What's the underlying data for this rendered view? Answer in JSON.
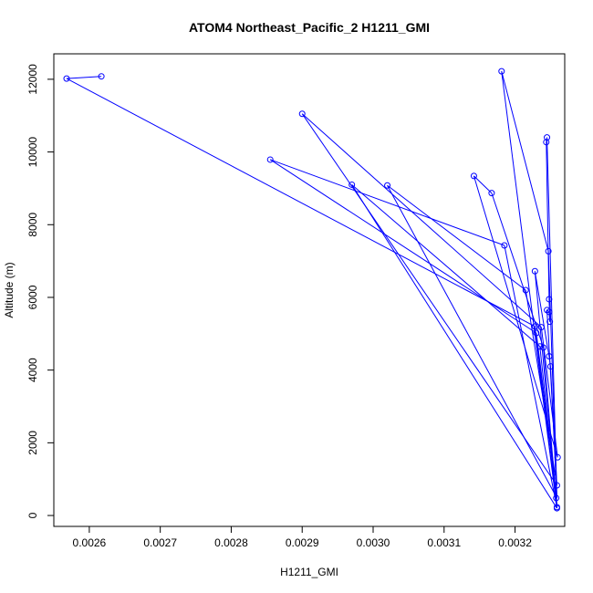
{
  "chart_data": {
    "type": "line",
    "title": "ATOM4 Northeast_Pacific_2 H1211_GMI",
    "xlabel": "H1211_GMI",
    "ylabel": "Altitude (m)",
    "xlim": [
      0.00255,
      0.00327
    ],
    "ylim": [
      -300,
      12700
    ],
    "x_ticks": [
      0.0026,
      0.0027,
      0.0028,
      0.0029,
      0.003,
      0.0031,
      0.0032
    ],
    "x_tick_labels": [
      "0.0026",
      "0.0027",
      "0.0028",
      "0.0029",
      "0.0030",
      "0.0031",
      "0.0032"
    ],
    "y_ticks": [
      0,
      2000,
      4000,
      6000,
      8000,
      10000,
      12000
    ],
    "y_tick_labels": [
      "0",
      "2000",
      "4000",
      "6000",
      "8000",
      "10000",
      "12000"
    ],
    "series": [
      {
        "color": "#0000ff",
        "marker": "open-circle",
        "points": [
          {
            "x": 0.003259,
            "y": 200
          },
          {
            "x": 0.003259,
            "y": 230
          },
          {
            "x": 0.003258,
            "y": 480
          },
          {
            "x": 0.003259,
            "y": 830
          },
          {
            "x": 0.00326,
            "y": 1600
          },
          {
            "x": 0.00325,
            "y": 4100
          },
          {
            "x": 0.003248,
            "y": 4380
          },
          {
            "x": 0.00324,
            "y": 4620
          },
          {
            "x": 0.003235,
            "y": 4650
          },
          {
            "x": 0.00323,
            "y": 5020
          },
          {
            "x": 0.003228,
            "y": 5200
          },
          {
            "x": 0.003237,
            "y": 5180
          },
          {
            "x": 0.003245,
            "y": 5650
          },
          {
            "x": 0.003249,
            "y": 5330
          },
          {
            "x": 0.003248,
            "y": 5600
          },
          {
            "x": 0.003248,
            "y": 5950
          },
          {
            "x": 0.003215,
            "y": 6200
          },
          {
            "x": 0.003228,
            "y": 6720
          },
          {
            "x": 0.003247,
            "y": 7270
          },
          {
            "x": 0.003185,
            "y": 7430
          },
          {
            "x": 0.003167,
            "y": 8870
          },
          {
            "x": 0.003142,
            "y": 9340
          },
          {
            "x": 0.00302,
            "y": 9080
          },
          {
            "x": 0.00297,
            "y": 9100
          },
          {
            "x": 0.002855,
            "y": 9790
          },
          {
            "x": 0.003244,
            "y": 10270
          },
          {
            "x": 0.003245,
            "y": 10400
          },
          {
            "x": 0.0029,
            "y": 11050
          },
          {
            "x": 0.003181,
            "y": 12220
          },
          {
            "x": 0.002617,
            "y": 12080
          },
          {
            "x": 0.002568,
            "y": 12020
          }
        ],
        "path_order": [
          {
            "x": 0.002617,
            "y": 12080
          },
          {
            "x": 0.002568,
            "y": 12020
          },
          {
            "x": 0.003228,
            "y": 5200
          },
          {
            "x": 0.003259,
            "y": 200
          },
          {
            "x": 0.003181,
            "y": 12220
          },
          {
            "x": 0.003247,
            "y": 7270
          },
          {
            "x": 0.003259,
            "y": 230
          },
          {
            "x": 0.003185,
            "y": 7430
          },
          {
            "x": 0.002855,
            "y": 9790
          },
          {
            "x": 0.00323,
            "y": 5020
          },
          {
            "x": 0.003259,
            "y": 480
          },
          {
            "x": 0.00302,
            "y": 9080
          },
          {
            "x": 0.003215,
            "y": 6200
          },
          {
            "x": 0.003259,
            "y": 830
          },
          {
            "x": 0.0029,
            "y": 11050
          },
          {
            "x": 0.003237,
            "y": 5180
          },
          {
            "x": 0.00326,
            "y": 1600
          },
          {
            "x": 0.003142,
            "y": 9340
          },
          {
            "x": 0.003167,
            "y": 8870
          },
          {
            "x": 0.00324,
            "y": 4620
          },
          {
            "x": 0.003259,
            "y": 200
          },
          {
            "x": 0.00297,
            "y": 9100
          },
          {
            "x": 0.003235,
            "y": 4650
          },
          {
            "x": 0.003259,
            "y": 230
          },
          {
            "x": 0.003228,
            "y": 6720
          },
          {
            "x": 0.003248,
            "y": 4380
          },
          {
            "x": 0.00325,
            "y": 4100
          },
          {
            "x": 0.003259,
            "y": 480
          },
          {
            "x": 0.003245,
            "y": 10400
          },
          {
            "x": 0.003244,
            "y": 10270
          },
          {
            "x": 0.003248,
            "y": 5950
          },
          {
            "x": 0.003249,
            "y": 5330
          },
          {
            "x": 0.003248,
            "y": 5600
          },
          {
            "x": 0.003245,
            "y": 5650
          },
          {
            "x": 0.003259,
            "y": 830
          }
        ]
      }
    ],
    "grid": false,
    "legend": "none"
  }
}
